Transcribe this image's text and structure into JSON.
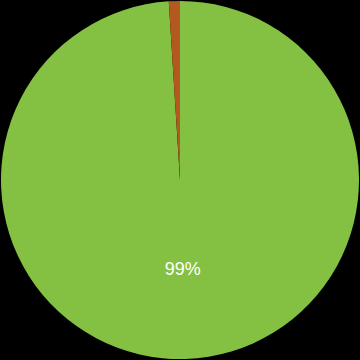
{
  "chart_data": {
    "type": "pie",
    "values": [
      99,
      1
    ],
    "value_labels": [
      "99%",
      null
    ],
    "colors": [
      "#84c041",
      "#b2591f"
    ],
    "data_labels": true
  }
}
